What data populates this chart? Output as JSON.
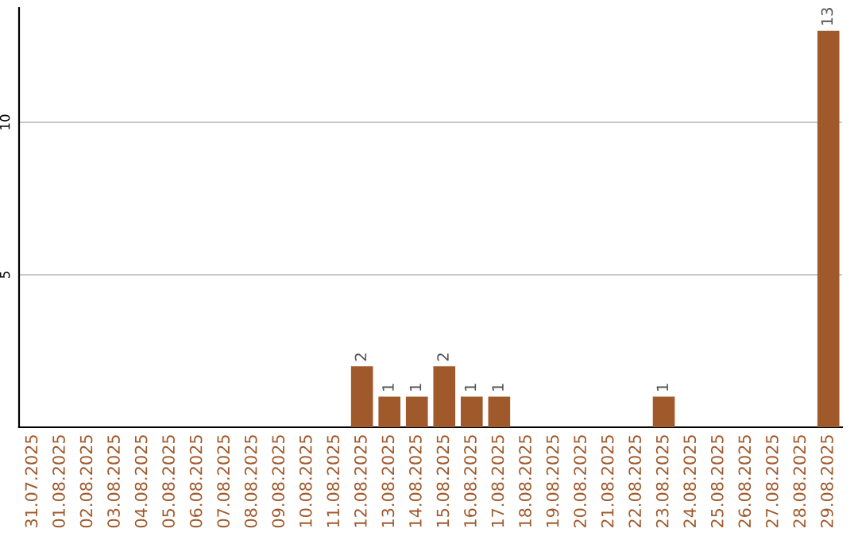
{
  "chart_data": {
    "type": "bar",
    "categories": [
      "31.07.2025",
      "01.08.2025",
      "02.08.2025",
      "03.08.2025",
      "04.08.2025",
      "05.08.2025",
      "06.08.2025",
      "07.08.2025",
      "08.08.2025",
      "09.08.2025",
      "10.08.2025",
      "11.08.2025",
      "12.08.2025",
      "13.08.2025",
      "14.08.2025",
      "15.08.2025",
      "16.08.2025",
      "17.08.2025",
      "18.08.2025",
      "19.08.2025",
      "20.08.2025",
      "21.08.2025",
      "22.08.2025",
      "23.08.2025",
      "24.08.2025",
      "25.08.2025",
      "26.08.2025",
      "27.08.2025",
      "28.08.2025",
      "29.08.2025"
    ],
    "values": [
      0,
      0,
      0,
      0,
      0,
      0,
      0,
      0,
      0,
      0,
      0,
      0,
      2,
      1,
      1,
      2,
      1,
      1,
      0,
      0,
      0,
      0,
      0,
      1,
      0,
      0,
      0,
      0,
      0,
      13
    ],
    "value_labels": [
      null,
      null,
      null,
      null,
      null,
      null,
      null,
      null,
      null,
      null,
      null,
      null,
      "2",
      "1",
      "1",
      "2",
      "1",
      "1",
      null,
      null,
      null,
      null,
      null,
      "1",
      null,
      null,
      null,
      null,
      null,
      "13"
    ],
    "color": "#a0592b",
    "ylim": [
      0,
      13.75
    ],
    "yticks": [
      5,
      10
    ],
    "grid": "y"
  }
}
